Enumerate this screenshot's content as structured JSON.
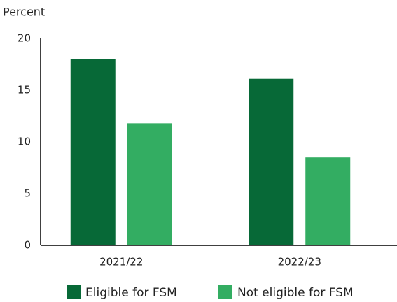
{
  "chart_data": {
    "type": "bar",
    "y_axis_label": "Percent",
    "categories": [
      "2021/22",
      "2022/23"
    ],
    "series": [
      {
        "name": "Eligible for FSM",
        "color": "#076937",
        "values": [
          18.0,
          16.1
        ]
      },
      {
        "name": "Not eligible for FSM",
        "color": "#33ad62",
        "values": [
          11.8,
          8.5
        ]
      }
    ],
    "ylim": [
      0,
      20
    ],
    "yticks": [
      0,
      5,
      10,
      15,
      20
    ],
    "grid": false,
    "legend": "bottom"
  }
}
